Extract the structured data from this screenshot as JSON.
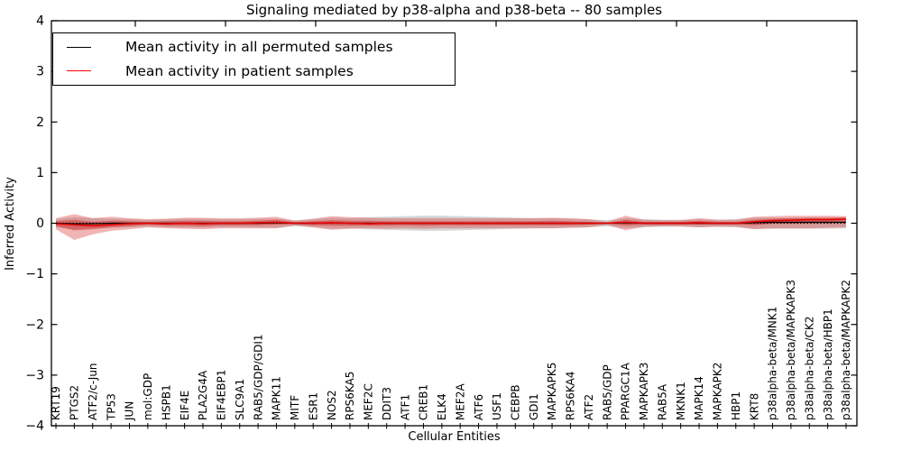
{
  "title": "Signaling mediated by p38-alpha and p38-beta -- 80 samples",
  "legend": {
    "items": [
      {
        "label": "Mean activity in all permuted samples",
        "color": "#000000"
      },
      {
        "label": "Mean activity in patient samples",
        "color": "#ff0000"
      }
    ]
  },
  "chart_data": {
    "type": "line",
    "title": "Signaling mediated by p38-alpha and p38-beta -- 80 samples",
    "xlabel": "Cellular Entities",
    "ylabel": "Inferred Activity",
    "ylim": [
      -4,
      4
    ],
    "yticks": [
      4,
      3,
      2,
      1,
      0,
      -1,
      -2,
      -3,
      -4
    ],
    "grid": false,
    "legend_position": "upper left",
    "categories": [
      "KRT19",
      "PTGS2",
      "ATF2/c-Jun",
      "TP53",
      "JUN",
      "mol:GDP",
      "HSPB1",
      "EIF4E",
      "PLA2G4A",
      "EIF4EBP1",
      "SLC9A1",
      "RAB5/GDP/GDI1",
      "MAPK11",
      "MITF",
      "ESR1",
      "NOS2",
      "RPS6KA5",
      "MEF2C",
      "DDIT3",
      "ATF1",
      "CREB1",
      "ELK4",
      "MEF2A",
      "ATF6",
      "USF1",
      "CEBPB",
      "GDI1",
      "MAPKAPK5",
      "RPS6KA4",
      "ATF2",
      "RAB5/GDP",
      "PPARGC1A",
      "MAPKAPK3",
      "RAB5A",
      "MKNK1",
      "MAPK14",
      "MAPKAPK2",
      "HBP1",
      "KRT8",
      "p38alpha-beta/MNK1",
      "p38alpha-beta/MAPKAPK3",
      "p38alpha-beta/CK2",
      "p38alpha-beta/HBP1",
      "p38alpha-beta/MAPKAPK2"
    ],
    "series": [
      {
        "name": "Mean activity in all permuted samples",
        "color": "#000000",
        "style": "solid",
        "width": 1.2,
        "values": [
          0,
          -0.01,
          -0.01,
          0,
          0,
          0,
          0,
          0,
          0,
          0,
          0,
          0,
          0.01,
          0,
          0,
          0.01,
          0,
          0,
          0,
          0,
          0,
          0,
          0,
          0,
          0,
          0,
          0,
          0,
          0,
          0,
          0,
          0.01,
          0,
          0,
          0,
          0,
          0,
          0,
          0.01,
          0.02,
          0.02,
          0.02,
          0.02,
          0.02
        ]
      },
      {
        "name": "Mean activity in patient samples",
        "color": "#e60000",
        "style": "solid",
        "width": 1.6,
        "values": [
          -0.01,
          -0.03,
          -0.05,
          -0.03,
          -0.01,
          0,
          -0.01,
          0,
          -0.01,
          0,
          0,
          0.01,
          0.02,
          0,
          0,
          0.01,
          0,
          -0.01,
          0,
          0,
          0,
          0,
          0,
          0,
          0,
          0,
          0,
          0,
          0,
          0,
          0,
          0.02,
          0,
          0,
          0,
          0.01,
          0,
          0,
          0.03,
          0.05,
          0.06,
          0.07,
          0.07,
          0.08
        ]
      }
    ],
    "bands": [
      {
        "name": "permuted-std-band",
        "color": "#787878",
        "opacity": 0.3,
        "upper": [
          0.08,
          0.12,
          0.1,
          0.09,
          0.08,
          0.07,
          0.08,
          0.09,
          0.09,
          0.08,
          0.08,
          0.09,
          0.09,
          0.06,
          0.08,
          0.11,
          0.1,
          0.12,
          0.13,
          0.14,
          0.15,
          0.15,
          0.14,
          0.13,
          0.12,
          0.11,
          0.1,
          0.1,
          0.09,
          0.08,
          0.06,
          0.1,
          0.08,
          0.07,
          0.07,
          0.08,
          0.07,
          0.08,
          0.11,
          0.11,
          0.11,
          0.11,
          0.11,
          0.1
        ],
        "lower": [
          -0.08,
          -0.12,
          -0.1,
          -0.09,
          -0.08,
          -0.07,
          -0.08,
          -0.09,
          -0.09,
          -0.08,
          -0.08,
          -0.09,
          -0.09,
          -0.06,
          -0.08,
          -0.11,
          -0.1,
          -0.12,
          -0.13,
          -0.14,
          -0.15,
          -0.15,
          -0.14,
          -0.13,
          -0.12,
          -0.11,
          -0.1,
          -0.1,
          -0.09,
          -0.08,
          -0.06,
          -0.1,
          -0.08,
          -0.07,
          -0.07,
          -0.08,
          -0.07,
          -0.08,
          -0.11,
          -0.11,
          -0.11,
          -0.11,
          -0.11,
          -0.1
        ]
      },
      {
        "name": "patient-outer-band",
        "color": "#dc3c3c",
        "opacity": 0.38,
        "upper": [
          0.1,
          0.18,
          0.1,
          0.13,
          0.1,
          0.08,
          0.09,
          0.11,
          0.11,
          0.1,
          0.1,
          0.11,
          0.13,
          0.05,
          0.09,
          0.14,
          0.12,
          0.11,
          0.1,
          0.1,
          0.1,
          0.1,
          0.1,
          0.1,
          0.1,
          0.1,
          0.1,
          0.11,
          0.1,
          0.08,
          0.03,
          0.15,
          0.07,
          0.06,
          0.06,
          0.1,
          0.07,
          0.07,
          0.13,
          0.14,
          0.15,
          0.15,
          0.15,
          0.14
        ],
        "lower": [
          -0.12,
          -0.33,
          -0.22,
          -0.15,
          -0.12,
          -0.08,
          -0.1,
          -0.11,
          -0.12,
          -0.1,
          -0.1,
          -0.1,
          -0.1,
          -0.04,
          -0.08,
          -0.13,
          -0.11,
          -0.1,
          -0.11,
          -0.1,
          -0.11,
          -0.1,
          -0.1,
          -0.1,
          -0.1,
          -0.1,
          -0.1,
          -0.1,
          -0.09,
          -0.08,
          -0.03,
          -0.14,
          -0.07,
          -0.06,
          -0.06,
          -0.08,
          -0.07,
          -0.07,
          -0.12,
          -0.1,
          -0.1,
          -0.1,
          -0.09,
          -0.08
        ]
      },
      {
        "name": "patient-inner-band",
        "color": "#d03030",
        "opacity": 0.5,
        "upper": [
          0.04,
          0.07,
          0.03,
          0.05,
          0.04,
          0.03,
          0.04,
          0.05,
          0.05,
          0.04,
          0.04,
          0.05,
          0.07,
          0.02,
          0.04,
          0.06,
          0.05,
          0.05,
          0.04,
          0.04,
          0.04,
          0.04,
          0.04,
          0.04,
          0.04,
          0.04,
          0.04,
          0.05,
          0.04,
          0.03,
          0.01,
          0.07,
          0.03,
          0.03,
          0.03,
          0.05,
          0.03,
          0.03,
          0.07,
          0.09,
          0.1,
          0.11,
          0.11,
          0.12
        ],
        "lower": [
          -0.06,
          -0.14,
          -0.12,
          -0.08,
          -0.06,
          -0.03,
          -0.05,
          -0.05,
          -0.06,
          -0.04,
          -0.04,
          -0.04,
          -0.03,
          -0.02,
          -0.04,
          -0.05,
          -0.05,
          -0.05,
          -0.05,
          -0.04,
          -0.05,
          -0.04,
          -0.04,
          -0.04,
          -0.04,
          -0.04,
          -0.04,
          -0.04,
          -0.04,
          -0.03,
          -0.01,
          -0.05,
          -0.03,
          -0.03,
          -0.03,
          -0.03,
          -0.03,
          -0.03,
          -0.04,
          -0.01,
          -0.01,
          0.0,
          0.0,
          0.01
        ]
      }
    ],
    "zero_line": {
      "value": 0,
      "style": "dotted",
      "color": "#000000"
    }
  }
}
